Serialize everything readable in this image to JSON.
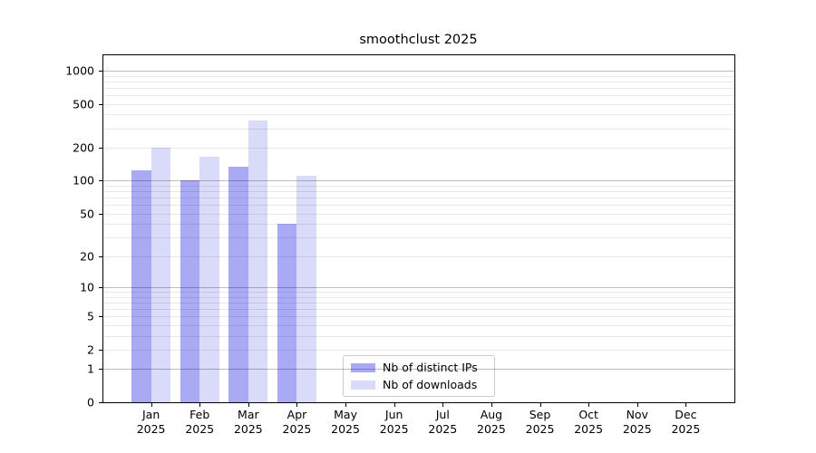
{
  "title": "smoothclust 2025",
  "colors": {
    "distinct_ips_bar": "#a9a9f4",
    "downloads_bar": "#dadaf9",
    "axis": "#000000",
    "legend_border": "#cccccc"
  },
  "legend": {
    "items": [
      {
        "label": "Nb of distinct IPs",
        "color": "#a9a9f4"
      },
      {
        "label": "Nb of downloads",
        "color": "#dadaf9"
      }
    ]
  },
  "chart_data": {
    "type": "bar",
    "title": "smoothclust 2025",
    "year": "2025",
    "categories": [
      "Jan",
      "Feb",
      "Mar",
      "Apr",
      "May",
      "Jun",
      "Jul",
      "Aug",
      "Sep",
      "Oct",
      "Nov",
      "Dec"
    ],
    "series": [
      {
        "name": "Nb of distinct IPs",
        "color": "#a9a9f4",
        "values": [
          125,
          100,
          133,
          40,
          0,
          0,
          0,
          0,
          0,
          0,
          0,
          0
        ]
      },
      {
        "name": "Nb of downloads",
        "color": "#dadaf9",
        "values": [
          200,
          165,
          350,
          112,
          0,
          0,
          0,
          0,
          0,
          0,
          0,
          0
        ]
      }
    ],
    "xlabel": "",
    "ylabel": "",
    "yscale": "log1p",
    "yticks": [
      0,
      1,
      2,
      5,
      10,
      20,
      50,
      100,
      200,
      500,
      1000
    ],
    "ylim": [
      0,
      1400
    ],
    "grid": "horizontal, minor log lines light, decade lines darker",
    "legend_position": "lower center inside axes"
  }
}
